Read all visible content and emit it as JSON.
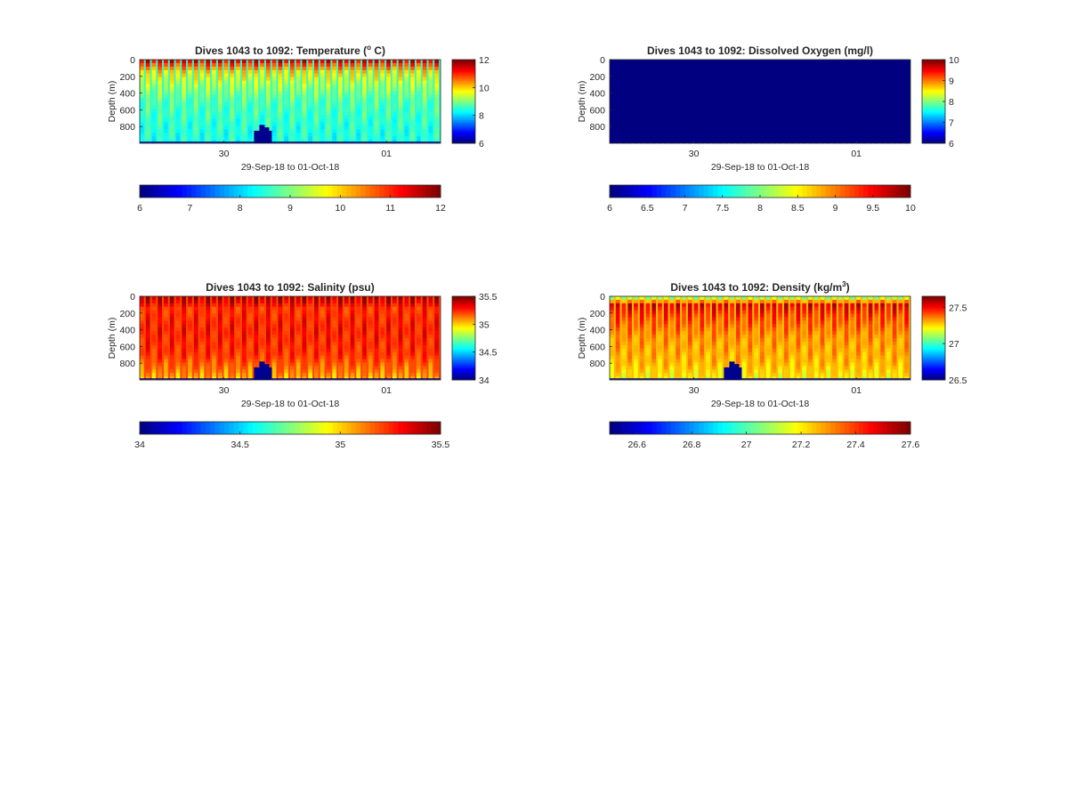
{
  "chart_data": [
    {
      "type": "heatmap",
      "title": "Dives 1043 to 1092: Temperature (° C)",
      "title_parts": {
        "pre": "Dives 1043 to 1092: Temperature (",
        "sup": "o",
        "post": " C)"
      },
      "xlabel": "29-Sep-18 to 01-Oct-18",
      "ylabel": "Depth (m)",
      "x_ticks": [
        "30",
        "01"
      ],
      "y_ticks": [
        "0",
        "200",
        "400",
        "600",
        "800"
      ],
      "ylim": [
        0,
        1000
      ],
      "y_reversed": true,
      "dives": [
        1043,
        1092
      ],
      "value_profile": {
        "depth": [
          0,
          50,
          150,
          300,
          500,
          800,
          1000
        ],
        "value": [
          11.7,
          11.0,
          10.0,
          9.4,
          8.8,
          8.5,
          8.4
        ]
      },
      "side_colorbar": {
        "min": 6,
        "max": 12,
        "ticks": [
          "12",
          "10",
          "8",
          "6"
        ]
      },
      "bottom_colorbar": {
        "min": 6,
        "max": 12,
        "ticks": [
          "6",
          "7",
          "8",
          "9",
          "10",
          "11",
          "12"
        ]
      }
    },
    {
      "type": "heatmap",
      "title": "Dives 1043 to 1092: Dissolved Oxygen (mg/l)",
      "xlabel": "29-Sep-18 to 01-Oct-18",
      "ylabel": "Depth (m)",
      "x_ticks": [
        "30",
        "01"
      ],
      "y_ticks": [
        "0",
        "200",
        "400",
        "600",
        "800"
      ],
      "ylim": [
        0,
        1000
      ],
      "y_reversed": true,
      "dives": [
        1043,
        1092
      ],
      "value_profile": {
        "depth": [
          0,
          1000
        ],
        "value": [
          6,
          6
        ]
      },
      "side_colorbar": {
        "min": 6,
        "max": 10,
        "ticks": [
          "10",
          "9",
          "8",
          "7",
          "6"
        ]
      },
      "bottom_colorbar": {
        "min": 6,
        "max": 10,
        "ticks": [
          "6",
          "6.5",
          "7",
          "7.5",
          "8",
          "8.5",
          "9",
          "9.5",
          "10"
        ]
      }
    },
    {
      "type": "heatmap",
      "title": "Dives 1043 to 1092: Salinity (psu)",
      "xlabel": "29-Sep-18 to 01-Oct-18",
      "ylabel": "Depth (m)",
      "x_ticks": [
        "30",
        "01"
      ],
      "y_ticks": [
        "0",
        "200",
        "400",
        "600",
        "800"
      ],
      "ylim": [
        0,
        1000
      ],
      "y_reversed": true,
      "dives": [
        1043,
        1092
      ],
      "value_profile": {
        "depth": [
          0,
          60,
          150,
          400,
          700,
          900,
          1000
        ],
        "value": [
          35.45,
          35.4,
          35.25,
          35.3,
          35.25,
          35.1,
          35.0
        ]
      },
      "side_colorbar": {
        "min": 34,
        "max": 35.5,
        "ticks": [
          "35.5",
          "35",
          "34.5",
          "34"
        ]
      },
      "bottom_colorbar": {
        "min": 34,
        "max": 35.5,
        "ticks": [
          "34",
          "34.5",
          "35",
          "35.5"
        ]
      }
    },
    {
      "type": "heatmap",
      "title": "Dives 1043 to 1092: Density (kg/m³)",
      "title_parts": {
        "pre": "Dives 1043 to 1092: Density (kg/m",
        "sup": "3",
        "post": ")"
      },
      "xlabel": "29-Sep-18 to 01-Oct-18",
      "ylabel": "Depth (m)",
      "x_ticks": [
        "30",
        "01"
      ],
      "y_ticks": [
        "0",
        "200",
        "400",
        "600",
        "800"
      ],
      "ylim": [
        0,
        1000
      ],
      "y_reversed": true,
      "dives": [
        1043,
        1092
      ],
      "value_profile": {
        "depth": [
          0,
          100,
          250,
          500,
          800,
          1000
        ],
        "value": [
          27.0,
          27.55,
          27.45,
          27.35,
          27.3,
          27.2
        ]
      },
      "side_colorbar": {
        "min": 26.5,
        "max": 27.65,
        "ticks": [
          "27.5",
          "27",
          "26.5"
        ]
      },
      "bottom_colorbar": {
        "min": 26.5,
        "max": 27.6,
        "ticks": [
          "26.6",
          "26.8",
          "27",
          "27.2",
          "27.4",
          "27.6"
        ]
      }
    }
  ]
}
